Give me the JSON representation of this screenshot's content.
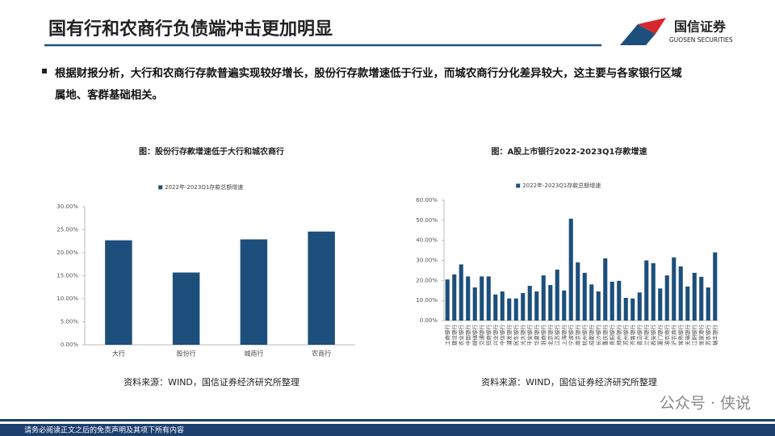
{
  "header": {
    "title": "国有行和农商行负债端冲击更加明显",
    "logo_cn": "国信证券",
    "logo_en": "GUOSEN SECURITIES"
  },
  "bullet": "根据财报分析，大行和农商行存款普遍实现较好增长，股份行存款增速低于行业，而城农商行分化差异较大，这主要与各家银行区域属地、客群基础相关。",
  "chart_data": [
    {
      "type": "bar",
      "title": "图：股份行存款增速低于大行和城农商行",
      "categories": [
        "大行",
        "股份行",
        "城商行",
        "农商行"
      ],
      "series": [
        {
          "name": "2022年-2023Q1存款总额增速",
          "color": "#1d4f7c",
          "values": [
            22.7,
            15.7,
            22.9,
            24.6
          ]
        }
      ],
      "ylim": [
        0,
        30
      ],
      "yticks": [
        {
          "value": 0,
          "label": "0.00%"
        },
        {
          "value": 5,
          "label": "5.00%"
        },
        {
          "value": 10,
          "label": "10.00%"
        },
        {
          "value": 15,
          "label": "15.00%"
        },
        {
          "value": 20,
          "label": "20.00%"
        },
        {
          "value": 25,
          "label": "25.00%"
        },
        {
          "value": 30,
          "label": "30.00%"
        }
      ],
      "source": "资料来源：WIND，国信证券经济研究所整理"
    },
    {
      "type": "bar",
      "title": "图：A股上市银行2022-2023Q1存款增速",
      "categories": [
        "工商银行",
        "建设银行",
        "农业银行",
        "中国银行",
        "邮储银行",
        "交通银行",
        "招商银行",
        "兴业银行",
        "中信银行",
        "浦发银行",
        "民生银行",
        "光大银行",
        "平安银行",
        "华夏银行",
        "浙商银行",
        "北京银行",
        "江苏银行",
        "上海银行",
        "宁波银行",
        "南京银行",
        "杭州银行",
        "成都银行",
        "长沙银行",
        "重庆银行",
        "贵阳银行",
        "郑州银行",
        "苏州银行",
        "齐鲁银行",
        "青岛银行",
        "兰州银行",
        "西安银行",
        "厦门银行",
        "渝农商行",
        "沪农商行",
        "常熟银行",
        "无锡银行",
        "江阴银行",
        "张家港行",
        "苏农银行",
        "瑞丰银行"
      ],
      "series": [
        {
          "name": "2022年-2023Q1存款总额增速",
          "color": "#1d4f7c",
          "values": [
            20.5,
            23,
            28,
            22,
            16.5,
            22,
            22,
            13,
            14.5,
            11,
            11,
            13.7,
            17.3,
            14.5,
            22.5,
            17.7,
            25.4,
            15,
            50.8,
            29,
            23.8,
            18,
            14.5,
            31,
            19.4,
            19.8,
            11.3,
            11,
            14,
            30,
            28.6,
            16,
            22.5,
            31.5,
            27,
            17,
            23.8,
            21.8,
            16.5,
            34
          ]
        }
      ],
      "ylim": [
        0,
        60
      ],
      "yticks": [
        {
          "value": 0,
          "label": "0.00%"
        },
        {
          "value": 10,
          "label": "10.00%"
        },
        {
          "value": 20,
          "label": "20.00%"
        },
        {
          "value": 30,
          "label": "30.00%"
        },
        {
          "value": 40,
          "label": "40.00%"
        },
        {
          "value": 50,
          "label": "50.00%"
        },
        {
          "value": 60,
          "label": "60.00%"
        }
      ],
      "source": "资料来源：WIND，国信证券经济研究所整理"
    }
  ],
  "footer": "请务必阅读正文之后的免责声明及其项下所有内容",
  "watermark": "公众号 · 侠说"
}
